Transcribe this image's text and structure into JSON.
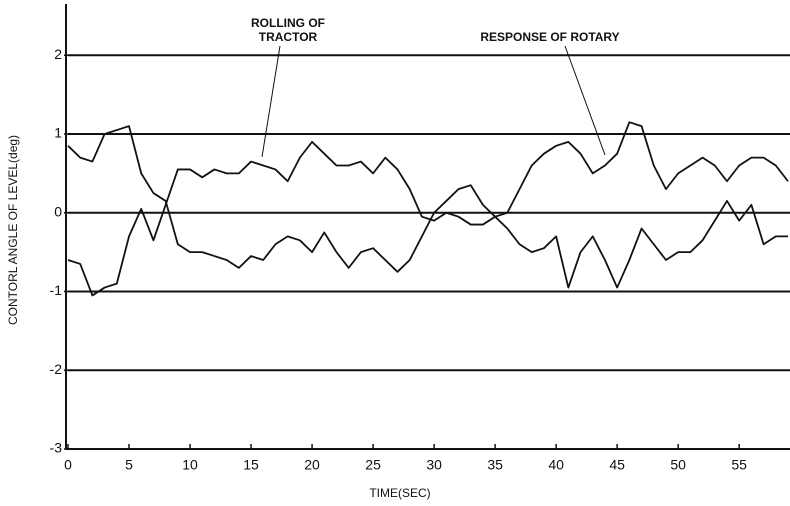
{
  "chart_data": {
    "type": "line",
    "xlabel": "TIME(SEC)",
    "ylabel": "CONTORL ANGLE OF LEVEL(deg)",
    "annotations": [
      "ROLLING OF",
      "TRACTOR",
      "RESPONSE OF ROTARY"
    ],
    "x": [
      0,
      1,
      2,
      3,
      4,
      5,
      6,
      7,
      8,
      9,
      10,
      11,
      12,
      13,
      14,
      15,
      16,
      17,
      18,
      19,
      20,
      21,
      22,
      23,
      24,
      25,
      26,
      27,
      28,
      29,
      30,
      31,
      32,
      33,
      34,
      35,
      36,
      37,
      38,
      39,
      40,
      41,
      42,
      43,
      44,
      45,
      46,
      47,
      48,
      49,
      50,
      51,
      52,
      53,
      54,
      55,
      56,
      57,
      58,
      59
    ],
    "series": [
      {
        "color": "#111111",
        "values": [
          0.85,
          0.7,
          0.65,
          1.0,
          1.05,
          1.1,
          0.5,
          0.25,
          0.15,
          -0.4,
          -0.5,
          -0.5,
          -0.55,
          -0.6,
          -0.7,
          -0.55,
          -0.6,
          -0.4,
          -0.3,
          -0.35,
          -0.5,
          -0.25,
          -0.5,
          -0.7,
          -0.5,
          -0.45,
          -0.6,
          -0.75,
          -0.6,
          -0.3,
          0,
          0.15,
          0.3,
          0.35,
          0.1,
          -0.05,
          -0.2,
          -0.4,
          -0.5,
          -0.45,
          -0.3,
          -0.95,
          -0.5,
          -0.3,
          -0.6,
          -0.95,
          -0.6,
          -0.2,
          -0.4,
          -0.6,
          -0.5,
          -0.5,
          -0.35,
          -0.1,
          0.15,
          -0.1,
          0.1,
          -0.4,
          -0.3,
          -0.3
        ]
      },
      {
        "color": "#111111",
        "values": [
          -0.6,
          -0.65,
          -1.05,
          -0.95,
          -0.9,
          -0.3,
          0.05,
          -0.35,
          0.1,
          0.55,
          0.55,
          0.45,
          0.55,
          0.5,
          0.5,
          0.65,
          0.6,
          0.55,
          0.4,
          0.7,
          0.9,
          0.75,
          0.6,
          0.6,
          0.65,
          0.5,
          0.7,
          0.55,
          0.3,
          -0.05,
          -0.1,
          0,
          -0.05,
          -0.15,
          -0.15,
          -0.05,
          0,
          0.3,
          0.6,
          0.75,
          0.85,
          0.9,
          0.75,
          0.5,
          0.6,
          0.75,
          1.15,
          1.1,
          0.6,
          0.3,
          0.5,
          0.6,
          0.7,
          0.6,
          0.4,
          0.6,
          0.7,
          0.7,
          0.6,
          0.4
        ]
      }
    ],
    "xlim": [
      0,
      59
    ],
    "xticks": [
      0,
      5,
      10,
      15,
      20,
      25,
      30,
      35,
      40,
      45,
      50,
      55
    ],
    "ylim": [
      -3,
      2.6
    ],
    "yticks": [
      -3,
      -2,
      -1,
      0,
      1,
      2
    ],
    "grid": true
  }
}
